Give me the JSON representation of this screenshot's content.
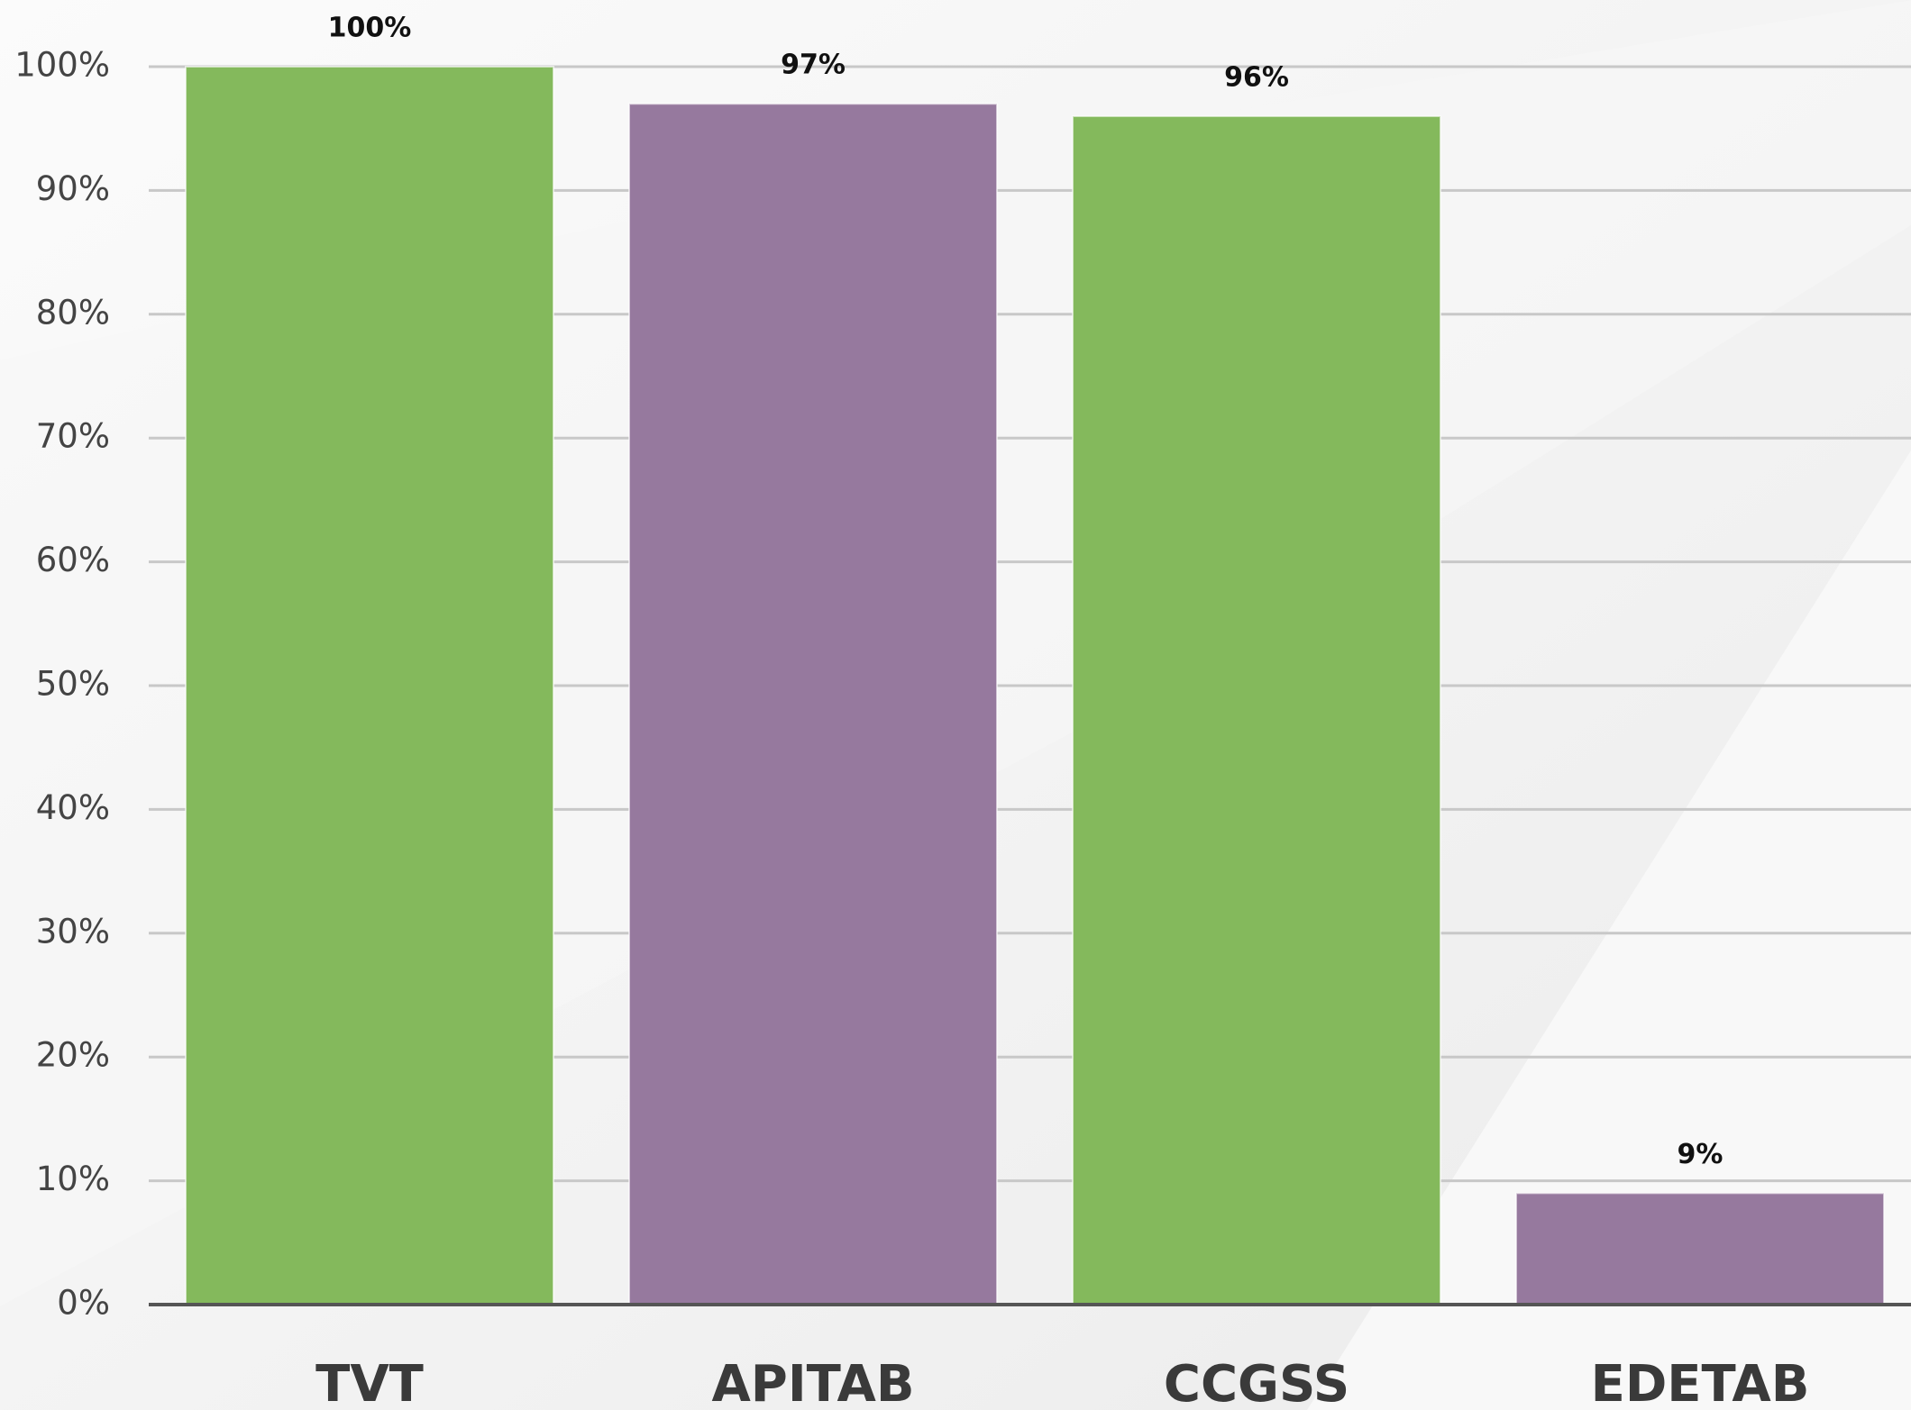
{
  "chart_data": {
    "type": "bar",
    "categories": [
      "TVT",
      "APITAB",
      "CCGSS",
      "EDETAB"
    ],
    "values": [
      100,
      97,
      96,
      9
    ],
    "value_labels": [
      "100%",
      "97%",
      "96%",
      "9%"
    ],
    "colors": [
      "#84b95c",
      "#96799e",
      "#84b95c",
      "#96799e"
    ],
    "ylim": [
      0,
      100
    ],
    "yticks": [
      {
        "value": 0,
        "label": "0%"
      },
      {
        "value": 10,
        "label": "10%"
      },
      {
        "value": 20,
        "label": "20%"
      },
      {
        "value": 30,
        "label": "30%"
      },
      {
        "value": 40,
        "label": "40%"
      },
      {
        "value": 50,
        "label": "50%"
      },
      {
        "value": 60,
        "label": "60%"
      },
      {
        "value": 70,
        "label": "70%"
      },
      {
        "value": 80,
        "label": "80%"
      },
      {
        "value": 90,
        "label": "90%"
      },
      {
        "value": 100,
        "label": "100%"
      }
    ],
    "grid": true
  }
}
